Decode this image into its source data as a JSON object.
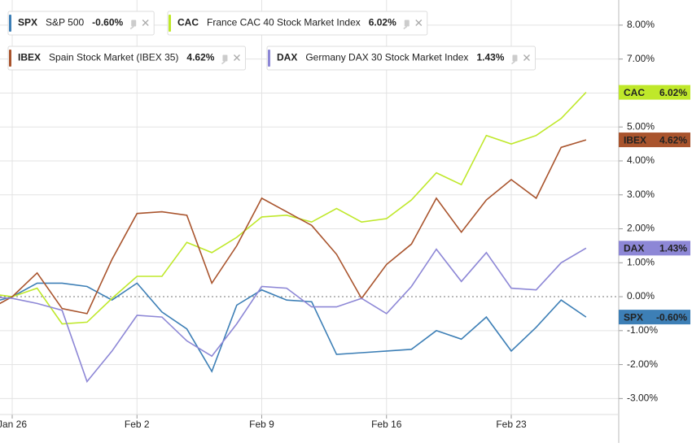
{
  "chart_data": {
    "type": "line",
    "categories": [
      null,
      "Jan 26",
      null,
      null,
      null,
      null,
      "Feb 2",
      null,
      null,
      null,
      null,
      "Feb 9",
      null,
      null,
      null,
      null,
      "Feb 16",
      null,
      null,
      null,
      null,
      "Feb 23",
      null,
      null,
      null
    ],
    "ylim": [
      -3.47,
      8.74
    ],
    "yticks": [
      {
        "value": 8,
        "label": "8.00%"
      },
      {
        "value": 7,
        "label": "7.00%"
      },
      {
        "value": 6,
        "label": "6.00%"
      },
      {
        "value": 5,
        "label": "5.00%"
      },
      {
        "value": 4,
        "label": "4.00%"
      },
      {
        "value": 3,
        "label": "3.00%"
      },
      {
        "value": 2,
        "label": "2.00%"
      },
      {
        "value": 1,
        "label": "1.00%"
      },
      {
        "value": 0,
        "label": "0.00%"
      },
      {
        "value": -1,
        "label": "-1.00%"
      },
      {
        "value": -2,
        "label": "-2.00%"
      },
      {
        "value": -3,
        "label": "-3.00%"
      }
    ],
    "grid": true,
    "series": [
      {
        "name": "SPX",
        "description": "S&P 500",
        "latest_label": "-0.60%",
        "color": "#3d7fb6",
        "values": [
          -0.2,
          0,
          0.4,
          0.4,
          0.3,
          -0.1,
          0.4,
          -0.45,
          -0.95,
          -2.2,
          -0.25,
          0.2,
          -0.1,
          -0.15,
          -1.7,
          -1.65,
          -1.6,
          -1.55,
          -1.0,
          -1.25,
          -0.6,
          -1.6,
          -0.9,
          -0.1,
          -0.6
        ]
      },
      {
        "name": "CAC",
        "description": "France CAC 40 Stock Market Index",
        "latest_label": "6.02%",
        "color": "#bfe82a",
        "values": [
          0.1,
          0,
          0.25,
          -0.8,
          -0.75,
          -0.05,
          0.6,
          0.6,
          1.6,
          1.3,
          1.75,
          2.35,
          2.4,
          2.2,
          2.6,
          2.2,
          2.3,
          2.85,
          3.65,
          3.3,
          4.75,
          4.5,
          4.75,
          5.25,
          6.02
        ]
      },
      {
        "name": "IBEX",
        "description": "Spain Stock Market (IBEX 35)",
        "latest_label": "4.62%",
        "color": "#a9542d",
        "values": [
          -0.4,
          0,
          0.7,
          -0.35,
          -0.5,
          1.1,
          2.45,
          2.5,
          2.4,
          0.4,
          1.5,
          2.9,
          2.5,
          2.1,
          1.25,
          -0.05,
          0.95,
          1.55,
          2.9,
          1.9,
          2.85,
          3.45,
          2.9,
          4.4,
          4.62
        ]
      },
      {
        "name": "DAX",
        "description": "Germany DAX 30 Stock Market Index",
        "latest_label": "1.43%",
        "color": "#8d87d6",
        "values": [
          0,
          -0.05,
          -0.2,
          -0.4,
          -2.5,
          -1.6,
          -0.55,
          -0.6,
          -1.3,
          -1.75,
          -0.8,
          0.3,
          0.25,
          -0.3,
          -0.3,
          -0.05,
          -0.5,
          0.3,
          1.4,
          0.45,
          1.3,
          0.25,
          0.2,
          1.0,
          1.43
        ]
      }
    ]
  }
}
